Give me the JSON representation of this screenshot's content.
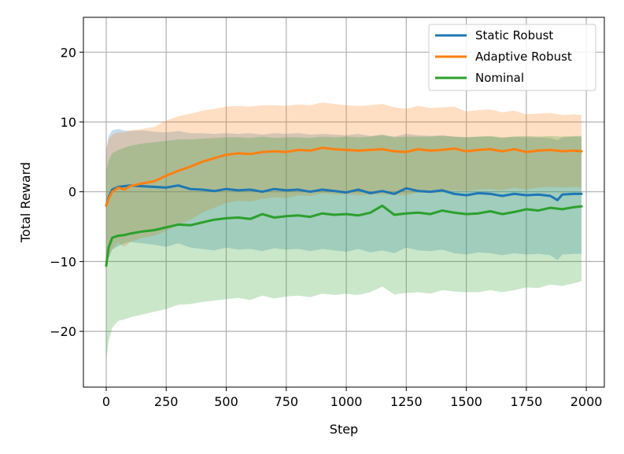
{
  "chart_data": {
    "type": "line",
    "xlabel": "Step",
    "ylabel": "Total Reward",
    "xlim": [
      -95,
      2075
    ],
    "ylim": [
      -28,
      25
    ],
    "xticks": [
      0,
      250,
      500,
      750,
      1000,
      1250,
      1500,
      1750,
      2000
    ],
    "yticks": [
      -20,
      -10,
      0,
      10,
      20
    ],
    "xtick_labels": [
      "0",
      "250",
      "500",
      "750",
      "1000",
      "1250",
      "1500",
      "1750",
      "2000"
    ],
    "ytick_labels": [
      "−20",
      "−10",
      "0",
      "10",
      "20"
    ],
    "grid": true,
    "legend_position": "top-right",
    "series": [
      {
        "name": "Static Robust",
        "color": "#1f77b4",
        "x": [
          0,
          10,
          25,
          50,
          75,
          100,
          150,
          200,
          250,
          300,
          350,
          400,
          450,
          500,
          550,
          600,
          650,
          700,
          750,
          800,
          850,
          900,
          950,
          1000,
          1050,
          1100,
          1150,
          1200,
          1250,
          1300,
          1350,
          1400,
          1450,
          1500,
          1550,
          1600,
          1650,
          1700,
          1750,
          1800,
          1850,
          1880,
          1900,
          1950,
          1980
        ],
        "y": [
          -2.0,
          -0.8,
          0.3,
          0.7,
          0.8,
          0.9,
          0.8,
          0.7,
          0.6,
          0.9,
          0.4,
          0.3,
          0.1,
          0.4,
          0.2,
          0.3,
          0.0,
          0.4,
          0.2,
          0.3,
          0.0,
          0.3,
          0.1,
          -0.1,
          0.3,
          -0.2,
          0.1,
          -0.3,
          0.5,
          0.1,
          0.0,
          0.2,
          -0.3,
          -0.5,
          -0.2,
          -0.3,
          -0.6,
          -0.3,
          -0.5,
          -0.4,
          -0.6,
          -1.2,
          -0.4,
          -0.3,
          -0.3
        ],
        "band_upper": [
          6.0,
          8.0,
          8.8,
          9.0,
          8.8,
          8.7,
          8.8,
          8.6,
          8.5,
          8.7,
          8.4,
          8.4,
          8.3,
          8.4,
          8.3,
          8.4,
          8.2,
          8.4,
          8.3,
          8.4,
          8.2,
          8.3,
          8.2,
          8.1,
          8.3,
          8.0,
          8.2,
          7.9,
          8.3,
          8.1,
          8.0,
          8.1,
          7.9,
          7.8,
          7.9,
          7.9,
          7.7,
          7.9,
          7.8,
          7.8,
          7.7,
          7.4,
          7.8,
          7.9,
          7.9
        ],
        "band_lower": [
          -10.0,
          -9.6,
          -8.3,
          -7.8,
          -7.4,
          -7.2,
          -7.4,
          -7.6,
          -7.9,
          -7.4,
          -8.0,
          -8.2,
          -8.4,
          -8.0,
          -8.3,
          -8.2,
          -8.5,
          -8.1,
          -8.3,
          -8.2,
          -8.5,
          -8.2,
          -8.4,
          -8.6,
          -8.2,
          -8.7,
          -8.4,
          -8.8,
          -8.0,
          -8.4,
          -8.5,
          -8.3,
          -8.8,
          -9.0,
          -8.7,
          -8.8,
          -9.1,
          -8.8,
          -9.0,
          -8.9,
          -9.1,
          -9.8,
          -9.0,
          -8.9,
          -8.9
        ]
      },
      {
        "name": "Adaptive Robust",
        "color": "#ff7f0e",
        "x": [
          0,
          10,
          25,
          50,
          75,
          100,
          150,
          200,
          250,
          300,
          350,
          400,
          450,
          500,
          550,
          600,
          650,
          700,
          750,
          800,
          850,
          900,
          950,
          1000,
          1050,
          1100,
          1150,
          1200,
          1250,
          1300,
          1350,
          1400,
          1450,
          1500,
          1550,
          1600,
          1650,
          1700,
          1750,
          1800,
          1850,
          1900,
          1950,
          1980
        ],
        "y": [
          -2.0,
          -1.0,
          0.0,
          0.6,
          0.3,
          0.8,
          1.2,
          1.5,
          2.3,
          3.0,
          3.6,
          4.3,
          4.8,
          5.3,
          5.5,
          5.4,
          5.7,
          5.8,
          5.7,
          6.0,
          5.9,
          6.3,
          6.1,
          6.0,
          5.9,
          6.0,
          6.1,
          5.8,
          5.7,
          6.1,
          5.9,
          6.0,
          6.2,
          5.8,
          6.0,
          6.1,
          5.8,
          6.1,
          5.7,
          5.9,
          6.0,
          5.8,
          5.9,
          5.8
        ],
        "band_upper": [
          6.0,
          7.5,
          8.2,
          8.5,
          8.5,
          8.8,
          9.0,
          9.3,
          10.2,
          10.8,
          11.2,
          11.6,
          11.9,
          12.2,
          12.3,
          12.2,
          12.4,
          12.4,
          12.3,
          12.5,
          12.4,
          12.8,
          12.6,
          12.4,
          12.3,
          12.4,
          12.6,
          12.1,
          11.9,
          12.3,
          12.0,
          12.1,
          12.2,
          11.5,
          11.7,
          11.8,
          11.4,
          11.6,
          11.1,
          11.2,
          11.3,
          11.0,
          11.1,
          11.0
        ],
        "band_lower": [
          -10.0,
          -9.5,
          -8.2,
          -7.3,
          -7.9,
          -7.2,
          -6.6,
          -6.3,
          -5.6,
          -4.8,
          -4.0,
          -3.0,
          -2.3,
          -1.6,
          -1.3,
          -1.4,
          -1.0,
          -0.8,
          -0.9,
          -0.5,
          -0.6,
          -0.2,
          -0.4,
          -0.4,
          -0.5,
          -0.4,
          -0.4,
          -0.5,
          -0.5,
          -0.1,
          -0.2,
          -0.1,
          0.2,
          0.1,
          0.3,
          0.4,
          0.2,
          0.6,
          0.3,
          0.6,
          0.7,
          0.6,
          0.7,
          0.6
        ]
      },
      {
        "name": "Nominal",
        "color": "#2ca02c",
        "x": [
          0,
          10,
          25,
          50,
          75,
          100,
          150,
          200,
          250,
          300,
          350,
          400,
          450,
          500,
          550,
          600,
          650,
          700,
          750,
          800,
          850,
          900,
          950,
          1000,
          1050,
          1100,
          1150,
          1200,
          1250,
          1300,
          1350,
          1400,
          1450,
          1500,
          1550,
          1600,
          1650,
          1700,
          1750,
          1800,
          1850,
          1900,
          1950,
          1980
        ],
        "y": [
          -10.6,
          -8.0,
          -6.6,
          -6.3,
          -6.2,
          -6.0,
          -5.7,
          -5.5,
          -5.1,
          -4.7,
          -4.8,
          -4.4,
          -4.0,
          -3.8,
          -3.7,
          -3.9,
          -3.2,
          -3.7,
          -3.5,
          -3.4,
          -3.6,
          -3.1,
          -3.3,
          -3.2,
          -3.4,
          -3.0,
          -2.0,
          -3.3,
          -3.1,
          -3.0,
          -3.2,
          -2.7,
          -3.0,
          -3.2,
          -3.1,
          -2.8,
          -3.2,
          -2.9,
          -2.5,
          -2.7,
          -2.3,
          -2.5,
          -2.2,
          -2.1
        ],
        "band_upper": [
          3.0,
          4.5,
          5.5,
          6.0,
          6.3,
          6.6,
          6.9,
          7.1,
          7.3,
          7.5,
          7.5,
          7.6,
          7.7,
          7.8,
          7.8,
          7.7,
          7.9,
          7.7,
          7.8,
          7.8,
          7.7,
          7.9,
          7.8,
          7.9,
          7.8,
          7.9,
          8.1,
          7.8,
          7.9,
          7.9,
          7.9,
          8.0,
          7.9,
          7.8,
          7.9,
          8.0,
          7.8,
          7.9,
          8.0,
          7.9,
          8.0,
          7.9,
          8.0,
          8.0
        ],
        "band_lower": [
          -24.0,
          -21.5,
          -19.5,
          -18.5,
          -18.3,
          -18.0,
          -17.6,
          -17.2,
          -16.8,
          -16.2,
          -16.1,
          -15.8,
          -15.6,
          -15.4,
          -15.2,
          -15.5,
          -14.9,
          -15.3,
          -15.0,
          -14.9,
          -15.1,
          -14.6,
          -14.8,
          -14.6,
          -14.8,
          -14.4,
          -13.6,
          -14.7,
          -14.5,
          -14.4,
          -14.6,
          -14.1,
          -14.3,
          -14.4,
          -14.4,
          -14.1,
          -14.4,
          -14.1,
          -13.7,
          -13.8,
          -13.3,
          -13.5,
          -13.1,
          -12.8
        ]
      }
    ]
  }
}
